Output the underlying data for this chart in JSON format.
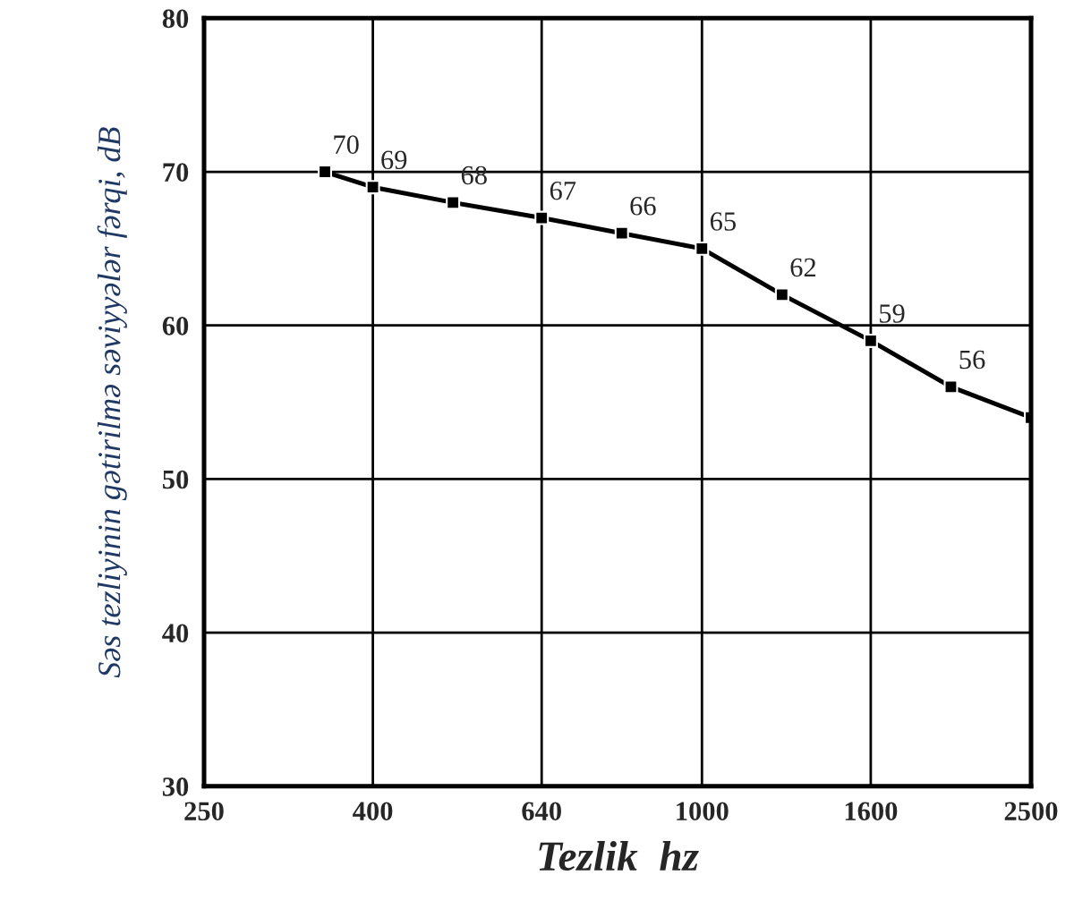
{
  "chart_data": {
    "type": "line",
    "xlabel": "Tezlik  hz",
    "ylabel": "Səs tezliyinin gətirilmə səviyyələr fərqi, dB",
    "log": "x",
    "xlim": [
      250,
      2500
    ],
    "xticks": [
      250,
      400,
      640,
      1000,
      1600,
      2500
    ],
    "ylim": [
      30,
      80
    ],
    "yticks": [
      30,
      40,
      50,
      60,
      70,
      80
    ],
    "grid": true,
    "marker": "square",
    "line_style": "solid",
    "series": [
      {
        "color": "#000000",
        "x": [
          350,
          400,
          500,
          640,
          800,
          1000,
          1250,
          1600,
          2000,
          2500
        ],
        "values": [
          70,
          69,
          68,
          67,
          66,
          65,
          62,
          59,
          56,
          54
        ],
        "value_labels": [
          "70",
          "69",
          "68",
          "67",
          "66",
          "65",
          "62",
          "59",
          "56",
          null
        ]
      }
    ]
  }
}
